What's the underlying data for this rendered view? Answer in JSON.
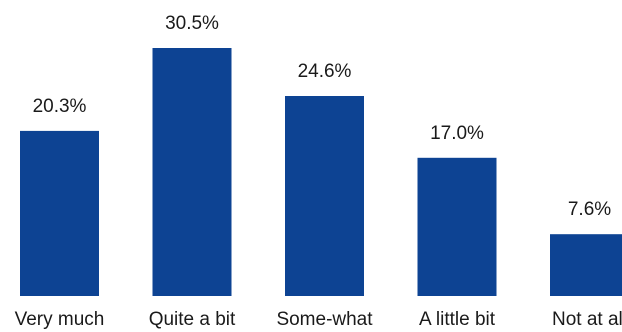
{
  "chart_data": {
    "type": "bar",
    "categories": [
      "Very much",
      "Quite a bit",
      "Some-what",
      "A little bit",
      "Not at all"
    ],
    "values": [
      20.3,
      30.5,
      24.6,
      17.0,
      7.6
    ],
    "data_labels": [
      "20.3%",
      "30.5%",
      "24.6%",
      "17.0%",
      "7.6%"
    ],
    "title": "",
    "xlabel": "",
    "ylabel": "",
    "ylim": [
      0,
      30.5
    ],
    "grid": false,
    "legend": "none",
    "bar_color": "#0d4393"
  }
}
